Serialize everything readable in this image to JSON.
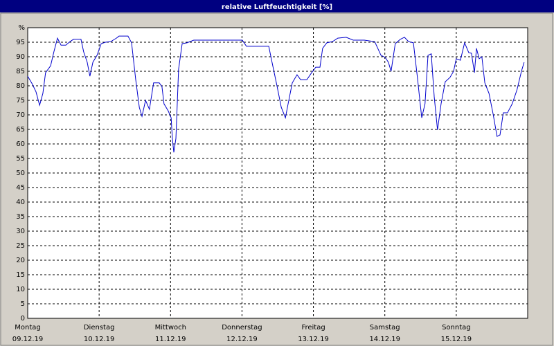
{
  "chart_data": {
    "type": "line",
    "title": "relative Luftfeuchtigkeit [%]",
    "x": [
      0,
      1.6,
      2.8,
      4.0,
      5.1,
      6.0,
      7.7,
      8.8,
      10.0,
      11.2,
      12.8,
      14.2,
      15.4,
      17.9,
      18.8,
      20.0,
      20.9,
      21.9,
      23.3,
      24.7,
      26.1,
      27.9,
      29.8,
      30.7,
      33.7,
      34.9,
      36.3,
      37.5,
      38.4,
      39.6,
      40.9,
      42.3,
      44.2,
      45.1,
      45.8,
      47.2,
      48.2,
      48.6,
      49.1,
      49.8,
      50.7,
      51.9,
      53.5,
      55.8,
      72.1,
      73.5,
      81.0,
      82.1,
      83.8,
      85.2,
      86.6,
      87.5,
      88.9,
      90.5,
      91.7,
      93.8,
      95.4,
      96.8,
      98.2,
      99.1,
      100.5,
      102.4,
      104.2,
      107.0,
      109.4,
      113.1,
      116.6,
      118.7,
      120.1,
      121.2,
      122.1,
      123.5,
      125.2,
      126.6,
      128.0,
      129.6,
      130.9,
      132.4,
      133.5,
      134.5,
      135.6,
      136.6,
      137.7,
      138.9,
      140.3,
      141.9,
      143.1,
      144.0,
      145.4,
      146.8,
      148.2,
      149.1,
      150.1,
      150.8,
      151.7,
      152.6,
      153.6,
      155.0,
      156.4,
      157.7,
      158.7,
      159.8,
      161.2,
      162.8,
      164.4,
      165.9,
      166.8
    ],
    "series": [
      {
        "color": "#0000cc",
        "values": [
          83.3,
          80.5,
          77.9,
          73.3,
          77.4,
          84.5,
          86.9,
          91.7,
          96.4,
          94,
          94,
          95.2,
          96,
          96,
          91.7,
          88.1,
          83.3,
          88.1,
          90.5,
          94.5,
          95,
          95.2,
          96.4,
          97.1,
          97.1,
          94.8,
          82.1,
          72.6,
          69.5,
          75,
          71.9,
          81,
          81,
          79.8,
          73.8,
          71.4,
          69,
          61.9,
          57.1,
          61.9,
          85.7,
          94.5,
          94.8,
          95.7,
          95.7,
          93.6,
          93.6,
          88.1,
          79.8,
          72.6,
          69,
          73.8,
          81,
          83.8,
          82.1,
          82.1,
          84.5,
          86.4,
          86.4,
          92.9,
          94.8,
          95.2,
          96.4,
          96.7,
          95.7,
          95.7,
          95.2,
          90.5,
          89.8,
          88.1,
          85,
          94.5,
          96,
          96.7,
          95.2,
          94.8,
          83.3,
          69,
          73.8,
          90.5,
          91,
          76.2,
          64.8,
          73.8,
          81.4,
          82.9,
          85,
          89.3,
          88.8,
          94.8,
          91.4,
          91.2,
          84.5,
          92.9,
          89.3,
          90,
          81,
          77.4,
          70.2,
          62.6,
          63.1,
          70.7,
          70.7,
          73.8,
          78.6,
          85,
          88.1
        ]
      }
    ],
    "xlim": [
      0,
      168
    ],
    "xticks": [
      {
        "value": 0,
        "label": "Montag",
        "date": "09.12.19"
      },
      {
        "value": 24,
        "label": "Dienstag",
        "date": "10.12.19"
      },
      {
        "value": 48,
        "label": "Mittwoch",
        "date": "11.12.19"
      },
      {
        "value": 72,
        "label": "Donnerstag",
        "date": "12.12.19"
      },
      {
        "value": 96,
        "label": "Freitag",
        "date": "13.12.19"
      },
      {
        "value": 120,
        "label": "Samstag",
        "date": "14.12.19"
      },
      {
        "value": 144,
        "label": "Sonntag",
        "date": "15.12.19"
      }
    ],
    "ylim": [
      0,
      100
    ],
    "yticks": [
      0,
      5,
      10,
      15,
      20,
      25,
      30,
      35,
      40,
      45,
      50,
      55,
      60,
      65,
      70,
      75,
      80,
      85,
      90,
      95,
      {
        "value": 100,
        "label": "%"
      }
    ],
    "grid": true
  }
}
